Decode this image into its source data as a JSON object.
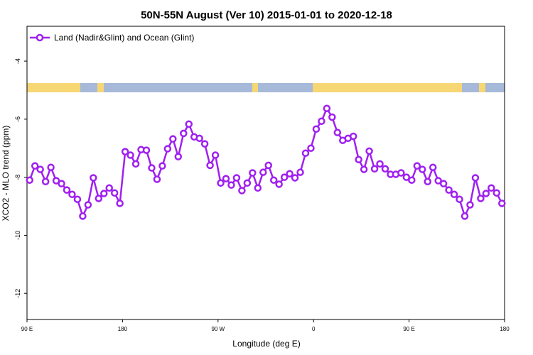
{
  "chart_data": {
    "type": "line",
    "title": "50N-55N August (Ver 10)   2015-01-01 to 2020-12-18",
    "x_label": "Longitude (deg E)",
    "y_label": "XCO2 - MLO trend (ppm)",
    "x": [
      92.5,
      97.5,
      102.5,
      107.5,
      112.5,
      117.5,
      122.5,
      127.5,
      132.5,
      137.5,
      142.5,
      147.5,
      152.5,
      157.5,
      162.5,
      167.5,
      172.5,
      177.5,
      182.5,
      187.5,
      192.5,
      197.5,
      202.5,
      207.5,
      212.5,
      217.5,
      222.5,
      227.5,
      232.5,
      237.5,
      242.5,
      247.5,
      252.5,
      257.5,
      262.5,
      267.5,
      272.5,
      277.5,
      282.5,
      287.5,
      292.5,
      297.5,
      302.5,
      307.5,
      312.5,
      317.5,
      322.5,
      327.5,
      332.5,
      337.5,
      342.5,
      347.5,
      352.5,
      357.5,
      362.5,
      367.5,
      372.5,
      377.5,
      382.5,
      387.5,
      392.5,
      397.5,
      402.5,
      407.5,
      412.5,
      417.5,
      422.5,
      427.5,
      432.5,
      437.5,
      442.5,
      447.5,
      452.5,
      457.5,
      462.5,
      467.5,
      472.5,
      477.5,
      482.5,
      487.5,
      492.5,
      497.5,
      502.5,
      507.5,
      512.5,
      517.5,
      522.5,
      527.5,
      532.5,
      537.5
    ],
    "series": [
      {
        "name": "Land (Nadir&Glint) and Ocean (Glint)",
        "color": "#a020f0",
        "values": [
          -8.1,
          -7.61,
          -7.73,
          -8.15,
          -7.66,
          -8.12,
          -8.22,
          -8.44,
          -8.59,
          -8.76,
          -9.34,
          -8.95,
          -8.02,
          -8.73,
          -8.56,
          -8.37,
          -8.54,
          -8.9,
          -7.12,
          -7.24,
          -7.54,
          -7.05,
          -7.07,
          -7.68,
          -8.07,
          -7.61,
          -7.02,
          -6.68,
          -7.29,
          -6.49,
          -6.17,
          -6.61,
          -6.66,
          -6.85,
          -7.59,
          -7.24,
          -8.2,
          -8.05,
          -8.27,
          -8.02,
          -8.46,
          -8.2,
          -7.85,
          -8.37,
          -7.83,
          -7.59,
          -8.1,
          -8.24,
          -8.0,
          -7.88,
          -8.02,
          -7.83,
          -7.17,
          -7.0,
          -6.34,
          -6.07,
          -5.63,
          -5.93,
          -6.46,
          -6.73,
          -6.66,
          -6.59,
          -7.39,
          -7.73,
          -7.1,
          -7.71,
          -7.54,
          -7.71,
          -7.9,
          -7.9,
          -7.85,
          -8.0,
          -8.1,
          -7.61,
          -7.73,
          -8.15,
          -7.66,
          -8.12,
          -8.22,
          -8.44,
          -8.59,
          -8.76,
          -9.34,
          -8.95,
          -8.02,
          -8.73,
          -8.56,
          -8.37,
          -8.54,
          -8.9
        ]
      }
    ],
    "xlim": [
      90,
      540
    ],
    "xticks": [
      {
        "value": 90,
        "label": "90 E"
      },
      180,
      {
        "value": 270,
        "label": "90 W"
      },
      {
        "value": 360,
        "label": "0"
      },
      {
        "value": 450,
        "label": "90 E"
      },
      {
        "value": 540,
        "label": "180"
      }
    ],
    "ylim": [
      -12.9,
      -2.8
    ],
    "yticks": [
      -12,
      -10,
      -8,
      -6,
      -4
    ],
    "legend": "top-left"
  }
}
